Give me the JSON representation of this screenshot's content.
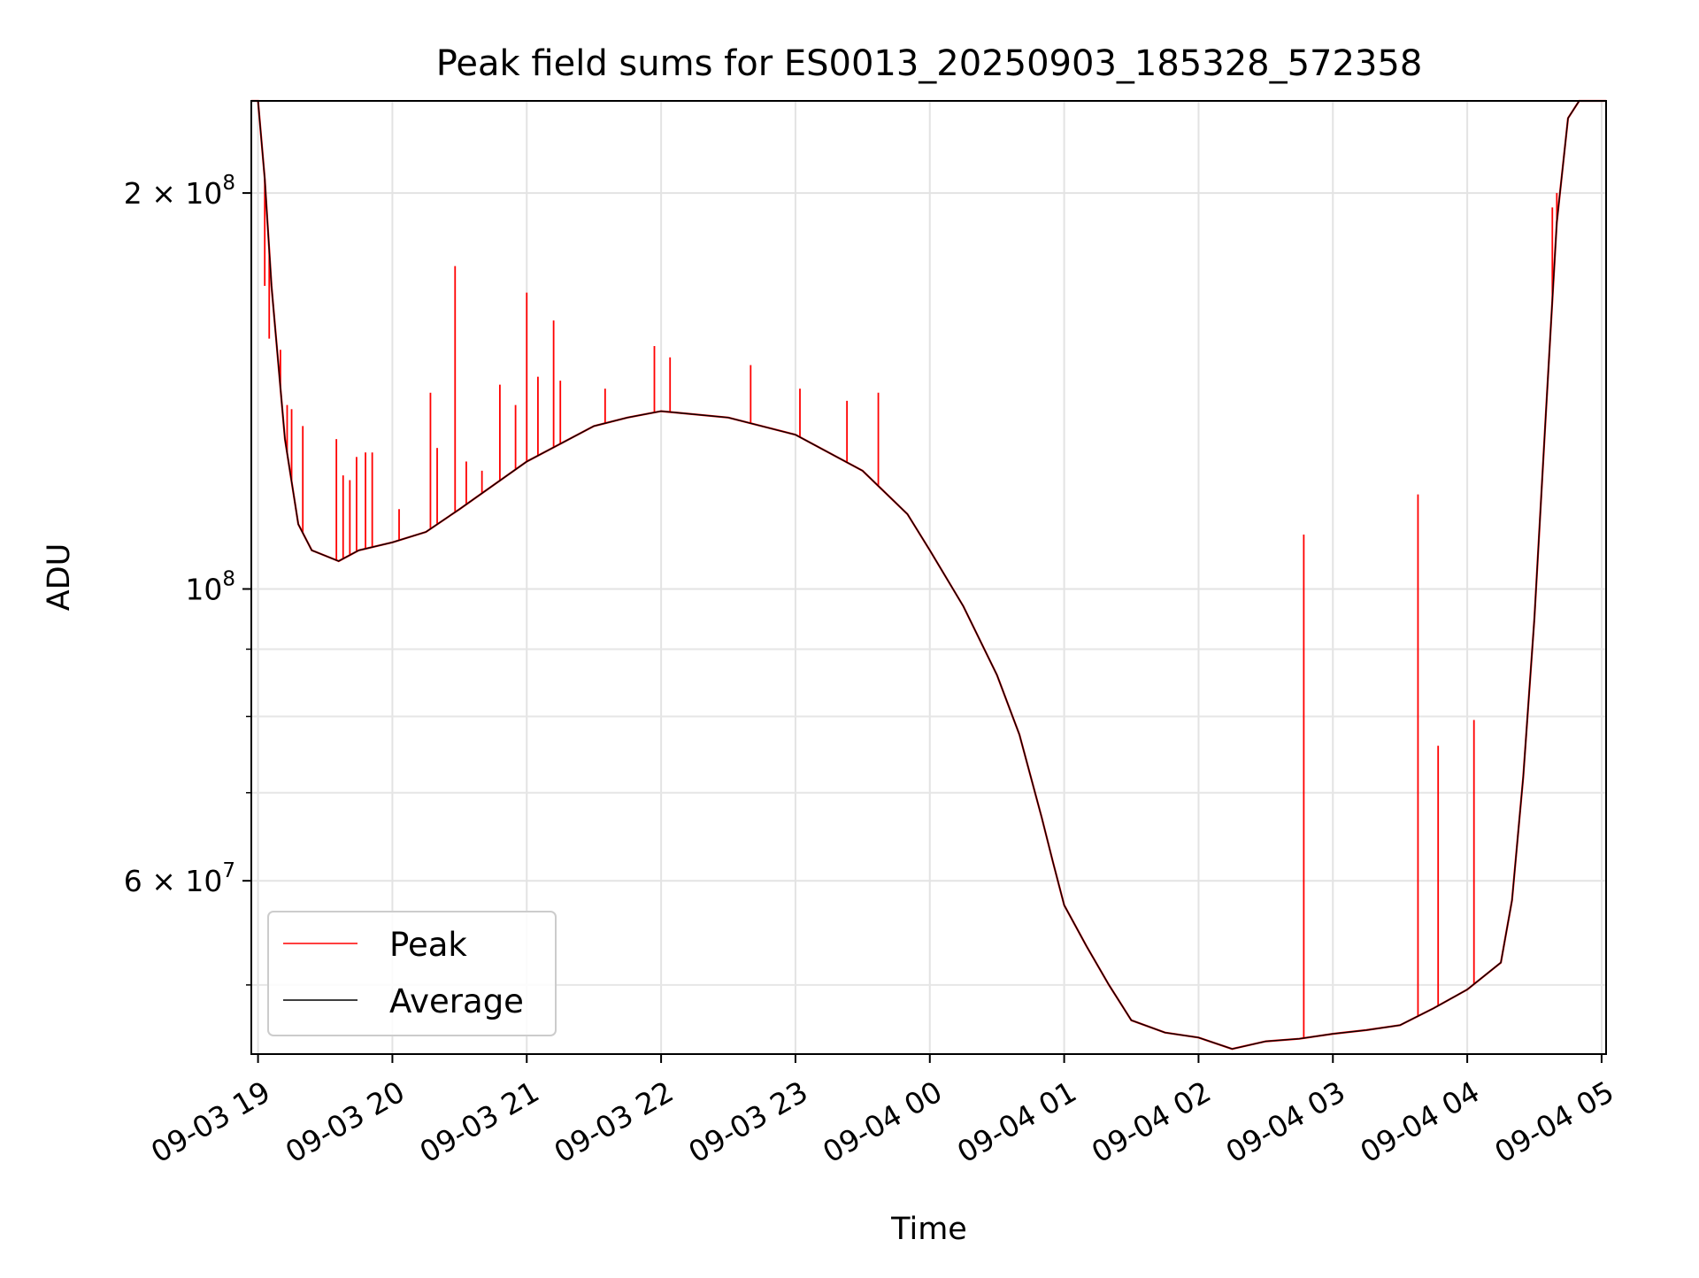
{
  "chart_data": {
    "type": "line",
    "title": "Peak field sums for ES0013_20250903_185328_572358",
    "xlabel": "Time",
    "ylabel": "ADU",
    "x_tick_labels": [
      "09-03 19",
      "09-03 20",
      "09-03 21",
      "09-03 22",
      "09-03 23",
      "09-04 00",
      "09-04 01",
      "09-04 02",
      "09-04 03",
      "09-04 04",
      "09-04 05"
    ],
    "x_ticks": [
      "2025-09-03 19:00",
      "2025-09-03 20:00",
      "2025-09-03 21:00",
      "2025-09-03 22:00",
      "2025-09-03 23:00",
      "2025-09-04 00:00",
      "2025-09-04 01:00",
      "2025-09-04 02:00",
      "2025-09-04 03:00",
      "2025-09-04 04:00",
      "2025-09-04 05:00"
    ],
    "y_scale": "log",
    "y_tick_labels": [
      {
        "value": 200000000,
        "mantissa": "2",
        "exponent": "8"
      },
      {
        "value": 100000000,
        "mantissa": "",
        "exponent": "8"
      },
      {
        "value": 60000000,
        "mantissa": "6",
        "exponent": "7"
      }
    ],
    "xlim": [
      "2025-09-03 18:57",
      "2025-09-04 05:02"
    ],
    "ylim": [
      44300000,
      235000000
    ],
    "grid": true,
    "legend_position": "lower-left",
    "series": [
      {
        "name": "Peak",
        "color": "#ff0000",
        "baseline_points": [
          [
            "2025-09-03 18:57",
            235000000
          ],
          [
            "2025-09-03 19:00",
            235000000
          ],
          [
            "2025-09-03 19:03",
            205000000
          ],
          [
            "2025-09-03 19:06",
            170000000
          ],
          [
            "2025-09-03 19:12",
            130000000
          ],
          [
            "2025-09-03 19:18",
            112000000
          ],
          [
            "2025-09-03 19:24",
            107000000
          ],
          [
            "2025-09-03 19:30",
            106000000
          ],
          [
            "2025-09-03 19:36",
            105000000
          ],
          [
            "2025-09-03 19:45",
            107000000
          ],
          [
            "2025-09-03 20:00",
            108500000
          ],
          [
            "2025-09-03 20:15",
            110500000
          ],
          [
            "2025-09-03 20:30",
            115000000
          ],
          [
            "2025-09-03 21:00",
            125000000
          ],
          [
            "2025-09-03 21:30",
            133000000
          ],
          [
            "2025-09-03 21:45",
            135000000
          ],
          [
            "2025-09-03 22:00",
            136500000
          ],
          [
            "2025-09-03 22:30",
            135000000
          ],
          [
            "2025-09-03 23:00",
            131000000
          ],
          [
            "2025-09-03 23:30",
            123000000
          ],
          [
            "2025-09-03 23:50",
            114000000
          ],
          [
            "2025-09-04 00:00",
            107000000
          ],
          [
            "2025-09-04 00:15",
            97000000
          ],
          [
            "2025-09-04 00:30",
            86000000
          ],
          [
            "2025-09-04 00:40",
            77500000
          ],
          [
            "2025-09-04 00:50",
            67000000
          ],
          [
            "2025-09-04 00:55",
            62000000
          ],
          [
            "2025-09-04 01:00",
            57500000
          ],
          [
            "2025-09-04 01:10",
            53500000
          ],
          [
            "2025-09-04 01:20",
            50000000
          ],
          [
            "2025-09-04 01:30",
            47000000
          ],
          [
            "2025-09-04 01:45",
            46000000
          ],
          [
            "2025-09-04 02:00",
            45600000
          ],
          [
            "2025-09-04 02:15",
            44700000
          ],
          [
            "2025-09-04 02:30",
            45300000
          ],
          [
            "2025-09-04 02:45",
            45500000
          ],
          [
            "2025-09-04 03:00",
            45900000
          ],
          [
            "2025-09-04 03:15",
            46200000
          ],
          [
            "2025-09-04 03:30",
            46600000
          ],
          [
            "2025-09-04 03:45",
            48000000
          ],
          [
            "2025-09-04 04:00",
            49600000
          ],
          [
            "2025-09-04 04:15",
            52000000
          ],
          [
            "2025-09-04 04:20",
            58000000
          ],
          [
            "2025-09-04 04:25",
            72000000
          ],
          [
            "2025-09-04 04:30",
            95000000
          ],
          [
            "2025-09-04 04:35",
            135000000
          ],
          [
            "2025-09-04 04:40",
            190000000
          ],
          [
            "2025-09-04 04:45",
            228000000
          ],
          [
            "2025-09-04 04:50",
            235000000
          ],
          [
            "2025-09-04 05:02",
            235000000
          ]
        ],
        "spikes": [
          [
            "2025-09-03 19:03",
            170000000
          ],
          [
            "2025-09-03 19:05",
            155000000
          ],
          [
            "2025-09-03 19:10",
            152000000
          ],
          [
            "2025-09-03 19:13",
            138000000
          ],
          [
            "2025-09-03 19:15",
            137000000
          ],
          [
            "2025-09-03 19:20",
            133000000
          ],
          [
            "2025-09-03 19:35",
            130000000
          ],
          [
            "2025-09-03 19:38",
            122000000
          ],
          [
            "2025-09-03 19:41",
            121000000
          ],
          [
            "2025-09-03 19:44",
            126000000
          ],
          [
            "2025-09-03 19:48",
            127000000
          ],
          [
            "2025-09-03 19:51",
            127000000
          ],
          [
            "2025-09-03 20:03",
            115000000
          ],
          [
            "2025-09-03 20:17",
            141000000
          ],
          [
            "2025-09-03 20:20",
            128000000
          ],
          [
            "2025-09-03 20:28",
            176000000
          ],
          [
            "2025-09-03 20:33",
            125000000
          ],
          [
            "2025-09-03 20:40",
            123000000
          ],
          [
            "2025-09-03 20:48",
            143000000
          ],
          [
            "2025-09-03 20:55",
            138000000
          ],
          [
            "2025-09-03 21:00",
            168000000
          ],
          [
            "2025-09-03 21:05",
            145000000
          ],
          [
            "2025-09-03 21:12",
            160000000
          ],
          [
            "2025-09-03 21:15",
            144000000
          ],
          [
            "2025-09-03 21:35",
            142000000
          ],
          [
            "2025-09-03 21:57",
            153000000
          ],
          [
            "2025-09-03 22:04",
            150000000
          ],
          [
            "2025-09-03 22:40",
            148000000
          ],
          [
            "2025-09-03 23:02",
            142000000
          ],
          [
            "2025-09-03 23:23",
            139000000
          ],
          [
            "2025-09-03 23:37",
            141000000
          ],
          [
            "2025-09-04 02:47",
            110000000
          ],
          [
            "2025-09-04 03:38",
            118000000
          ],
          [
            "2025-09-04 03:47",
            76000000
          ],
          [
            "2025-09-04 04:03",
            79500000
          ],
          [
            "2025-09-04 04:38",
            195000000
          ],
          [
            "2025-09-04 04:40",
            200000000
          ]
        ]
      },
      {
        "name": "Average",
        "color": "#000000"
      }
    ]
  }
}
